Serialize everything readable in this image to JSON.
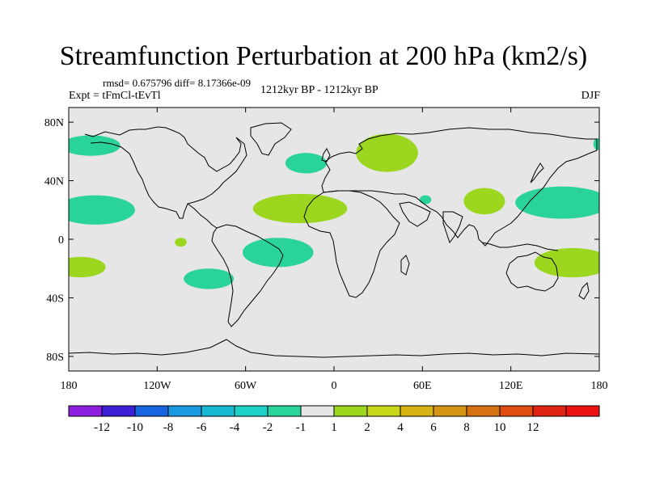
{
  "title": "Streamfunction Perturbation at 200 hPa (km2/s)",
  "stats": "rmsd= 0.675796 diff= 8.17366e-09",
  "experiment": "Expt = tFmCl-tEvTl",
  "period": "1212kyr BP - 1212kyr BP",
  "season": "DJF",
  "map": {
    "lon_range": [
      -180,
      180
    ],
    "lat_range": [
      -90,
      90
    ],
    "background_color": "#e6e6e6",
    "lat_ticks": [
      {
        "value": 80,
        "label": "80N"
      },
      {
        "value": 40,
        "label": "40N"
      },
      {
        "value": 0,
        "label": "0"
      },
      {
        "value": -40,
        "label": "40S"
      },
      {
        "value": -80,
        "label": "80S"
      }
    ],
    "lon_ticks": [
      {
        "value": -180,
        "label": "180"
      },
      {
        "value": -120,
        "label": "120W"
      },
      {
        "value": -60,
        "label": "60W"
      },
      {
        "value": 0,
        "label": "0"
      },
      {
        "value": 60,
        "label": "60E"
      },
      {
        "value": 120,
        "label": "120E"
      },
      {
        "value": 180,
        "label": "180"
      }
    ],
    "anomalies": [
      {
        "name": "n-pacific-neg",
        "lon": -165,
        "lat": 64,
        "rlon": 20,
        "rlat": 7,
        "color": "#2ad39a"
      },
      {
        "name": "hawaii-neg",
        "lon": -162,
        "lat": 20,
        "rlon": 27,
        "rlat": 10,
        "color": "#2ad39a"
      },
      {
        "name": "s-pacific-west-pos",
        "lon": -172,
        "lat": -19,
        "rlon": 17,
        "rlat": 7,
        "color": "#9cd61f"
      },
      {
        "name": "e-pacific-small-pos",
        "lon": -104,
        "lat": -2,
        "rlon": 4,
        "rlat": 3,
        "color": "#9cd61f"
      },
      {
        "name": "s-pacific-neg",
        "lon": -85,
        "lat": -27,
        "rlon": 17,
        "rlat": 7,
        "color": "#2ad39a"
      },
      {
        "name": "n-atlantic-neg",
        "lon": -19,
        "lat": 52,
        "rlon": 14,
        "rlat": 7,
        "color": "#2ad39a"
      },
      {
        "name": "subtropical-atlantic-pos",
        "lon": -23,
        "lat": 21,
        "rlon": 32,
        "rlat": 10,
        "color": "#9cd61f"
      },
      {
        "name": "s-atlantic-neg",
        "lon": -38,
        "lat": -9,
        "rlon": 24,
        "rlat": 10,
        "color": "#2ad39a"
      },
      {
        "name": "europe-pos",
        "lon": 36,
        "lat": 59,
        "rlon": 21,
        "rlat": 13,
        "color": "#9cd61f"
      },
      {
        "name": "mideast-neg",
        "lon": 62,
        "lat": 27,
        "rlon": 4,
        "rlat": 3,
        "color": "#2ad39a"
      },
      {
        "name": "china-pos",
        "lon": 102,
        "lat": 26,
        "rlon": 14,
        "rlat": 9,
        "color": "#9cd61f"
      },
      {
        "name": "w-pacific-neg",
        "lon": 155,
        "lat": 25,
        "rlon": 32,
        "rlat": 11,
        "color": "#2ad39a"
      },
      {
        "name": "australia-pos",
        "lon": 162,
        "lat": -16,
        "rlon": 26,
        "rlat": 10,
        "color": "#9cd61f"
      },
      {
        "name": "arctic-east-neg",
        "lon": 179,
        "lat": 65,
        "rlon": 3,
        "rlat": 4,
        "color": "#2ad39a"
      }
    ]
  },
  "colorbar": {
    "colors": [
      "#8c1fe0",
      "#3d1fd6",
      "#1764e0",
      "#1a98e0",
      "#17b8d4",
      "#1ed1c7",
      "#2ad39a",
      "#e6e6e6",
      "#9cd61f",
      "#c9d71a",
      "#d6b312",
      "#d69413",
      "#d67112",
      "#e04d12",
      "#e02412",
      "#ee1212"
    ],
    "labels": [
      "-12",
      "-10",
      "-8",
      "-6",
      "-4",
      "-2",
      "-1",
      "1",
      "2",
      "4",
      "6",
      "8",
      "10",
      "12"
    ]
  }
}
